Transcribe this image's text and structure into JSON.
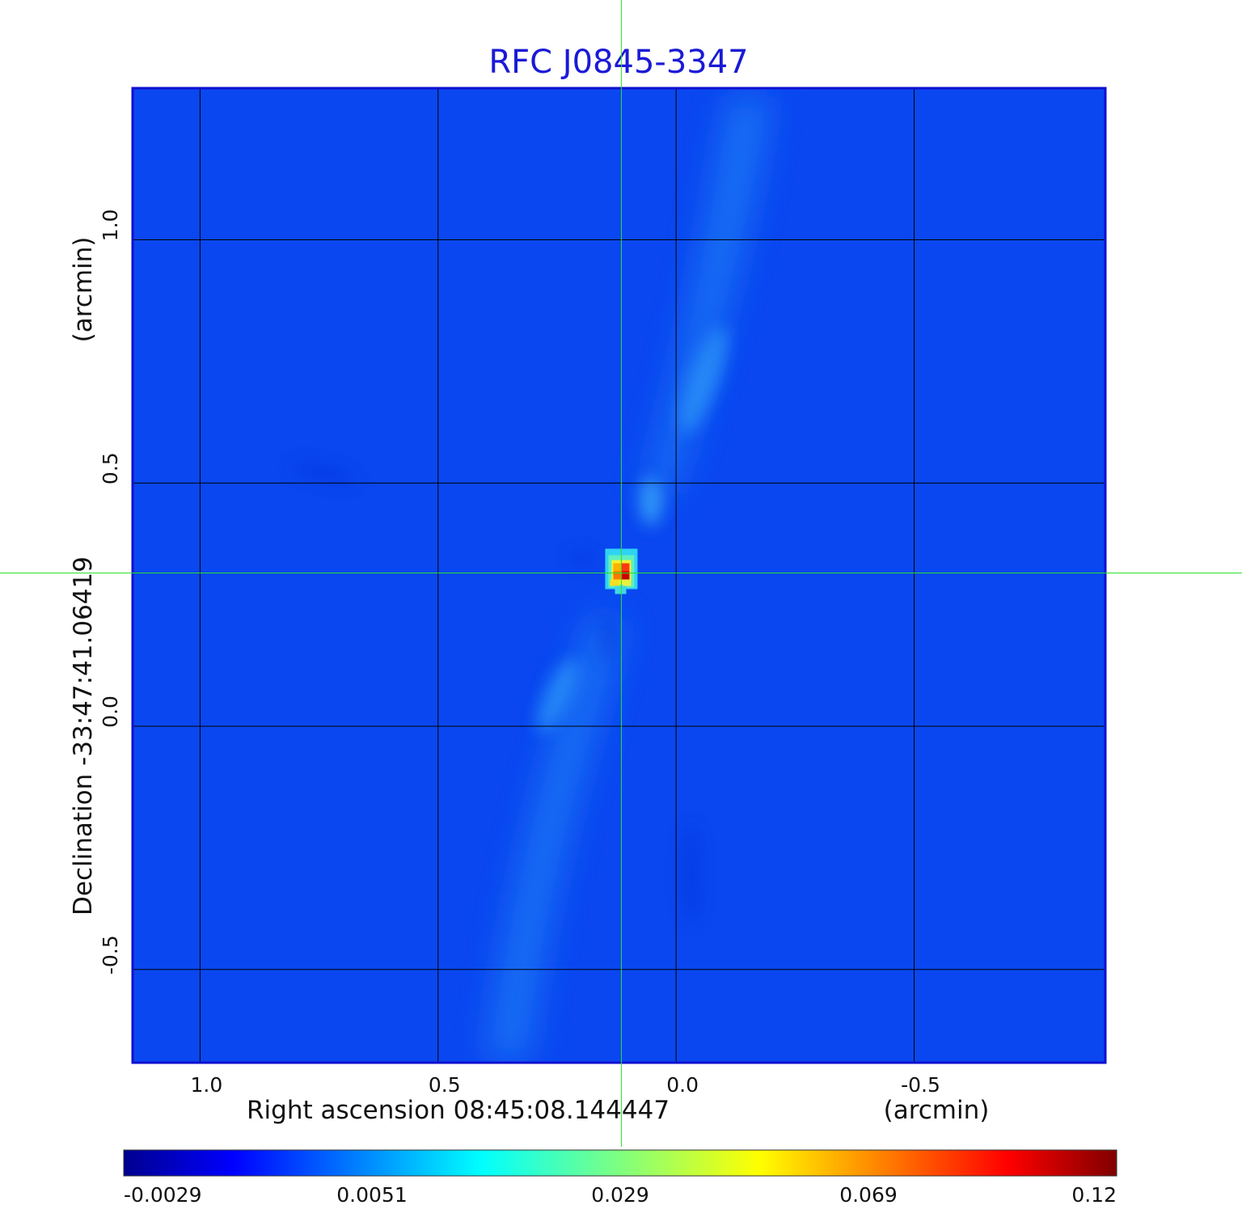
{
  "chart_data": {
    "type": "heatmap",
    "title": "RFC J0845-3347",
    "xlabel": "Right ascension  08:45:08.144447",
    "xunit": "(arcmin)",
    "ylabel": "Declination  -33:47:41.06419",
    "yunit": "(arcmin)",
    "xlim": [
      1.14,
      -0.9
    ],
    "ylim": [
      -0.69,
      1.31
    ],
    "x_ticks": [
      1.0,
      0.5,
      0.0,
      -0.5
    ],
    "x_tick_labels": [
      "1.0",
      "0.5",
      "0.0",
      "-0.5"
    ],
    "y_ticks": [
      1.0,
      0.5,
      0.0,
      -0.5
    ],
    "y_tick_labels": [
      "1.0",
      "0.5",
      "0.0",
      "-0.5"
    ],
    "grid": true,
    "crosshair": {
      "x": 0.115,
      "y": 0.315
    },
    "peak": {
      "x": 0.115,
      "y": 0.315,
      "value": 0.12
    },
    "colorbar": {
      "labels": [
        "-0.0029",
        "0.0051",
        "0.029",
        "0.069",
        "0.12"
      ],
      "min": -0.0029,
      "max": 0.12,
      "colormap": "jet"
    },
    "colors": {
      "background_field": "#0a47f0",
      "grid": "#000000",
      "crosshair": "#2ee02e",
      "frame": "#1010d0"
    }
  }
}
